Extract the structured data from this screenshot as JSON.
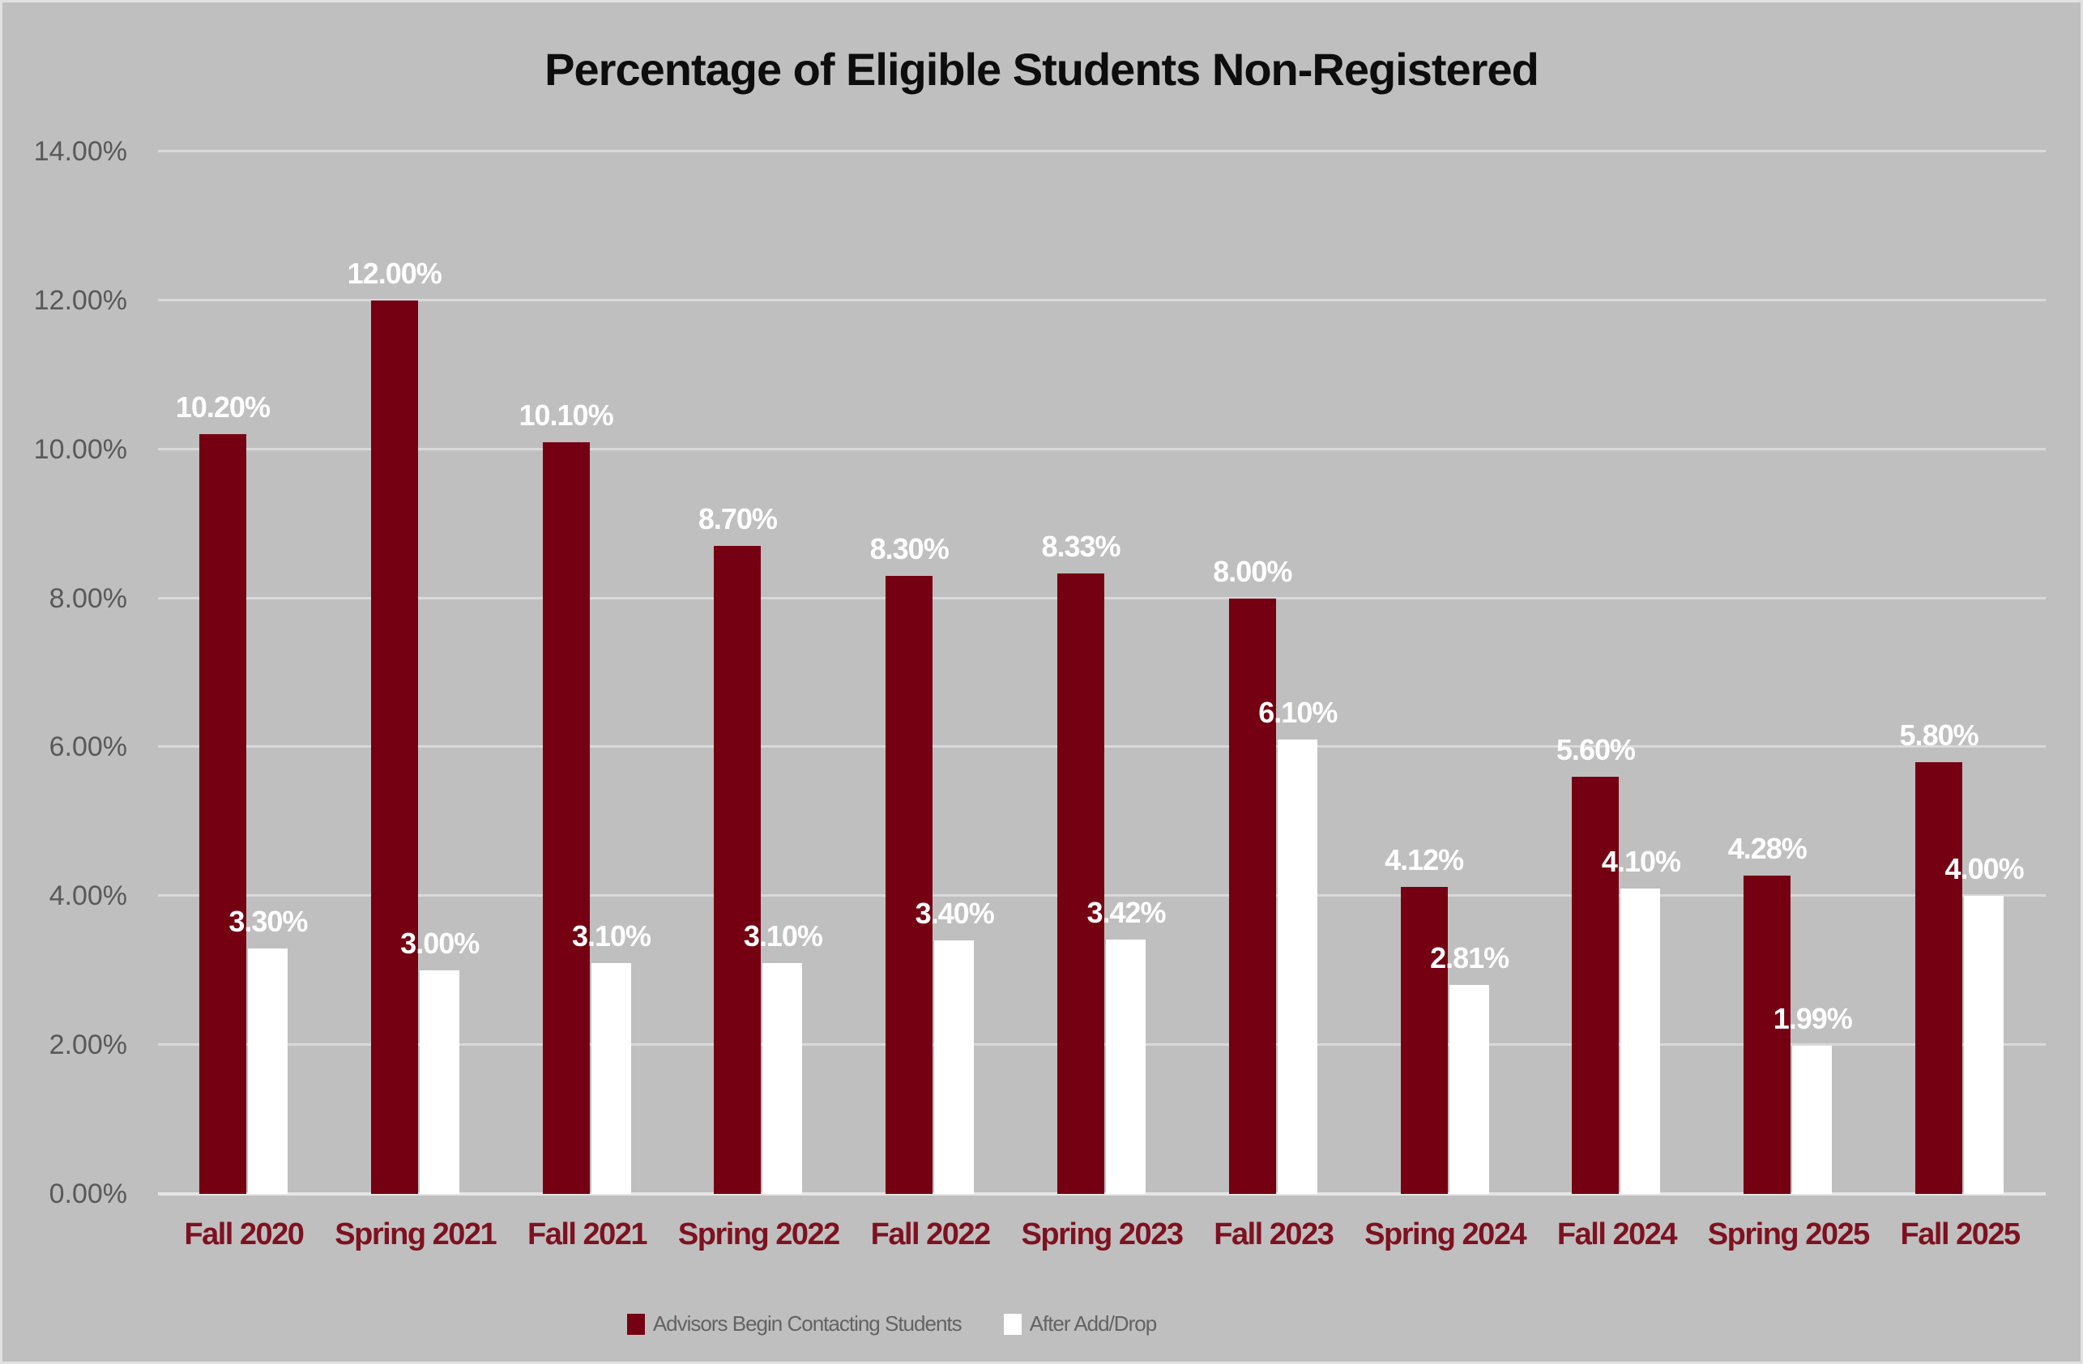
{
  "chart_data": {
    "type": "bar",
    "title": "Percentage of Eligible Students Non-Registered",
    "categories": [
      "Fall 2020",
      "Spring 2021",
      "Fall 2021",
      "Spring 2022",
      "Fall 2022",
      "Spring 2023",
      "Fall 2023",
      "Spring 2024",
      "Fall 2024",
      "Spring 2025",
      "Fall 2025"
    ],
    "series": [
      {
        "name": "Advisors Begin Contacting Students",
        "color": "#740012",
        "values": [
          10.2,
          12.0,
          10.1,
          8.7,
          8.3,
          8.33,
          8.0,
          4.12,
          5.6,
          4.28,
          5.8
        ],
        "data_labels": [
          "10.20%",
          "12.00%",
          "10.10%",
          "8.70%",
          "8.30%",
          "8.33%",
          "8.00%",
          "4.12%",
          "5.60%",
          "4.28%",
          "5.80%"
        ]
      },
      {
        "name": "After Add/Drop",
        "color": "#FFFFFF",
        "values": [
          3.3,
          3.0,
          3.1,
          3.1,
          3.4,
          3.42,
          6.1,
          2.81,
          4.1,
          1.99,
          4.0
        ],
        "data_labels": [
          "3.30%",
          "3.00%",
          "3.10%",
          "3.10%",
          "3.40%",
          "3.42%",
          "6.10%",
          "2.81%",
          "4.10%",
          "1.99%",
          "4.00%"
        ]
      }
    ],
    "ylim": [
      0,
      14
    ],
    "ytick_step": 2,
    "ytick_labels": [
      "0.00%",
      "2.00%",
      "4.00%",
      "6.00%",
      "8.00%",
      "10.00%",
      "12.00%",
      "14.00%"
    ],
    "grid": true,
    "legend_position": "bottom"
  },
  "colors": {
    "background": "#BFBFBF",
    "frame_border": "#E1E1E1",
    "gridline": "#D9D9D9",
    "axis_line": "#E5E5E5",
    "bar_advisors": "#740012",
    "bar_after_adddrop": "#FFFFFF",
    "value_label_text": "#FFFFFF",
    "x_label_text": "#7E1120",
    "y_label_text": "#595959",
    "legend_text": "#636363",
    "title_text": "#0D0D0D"
  }
}
